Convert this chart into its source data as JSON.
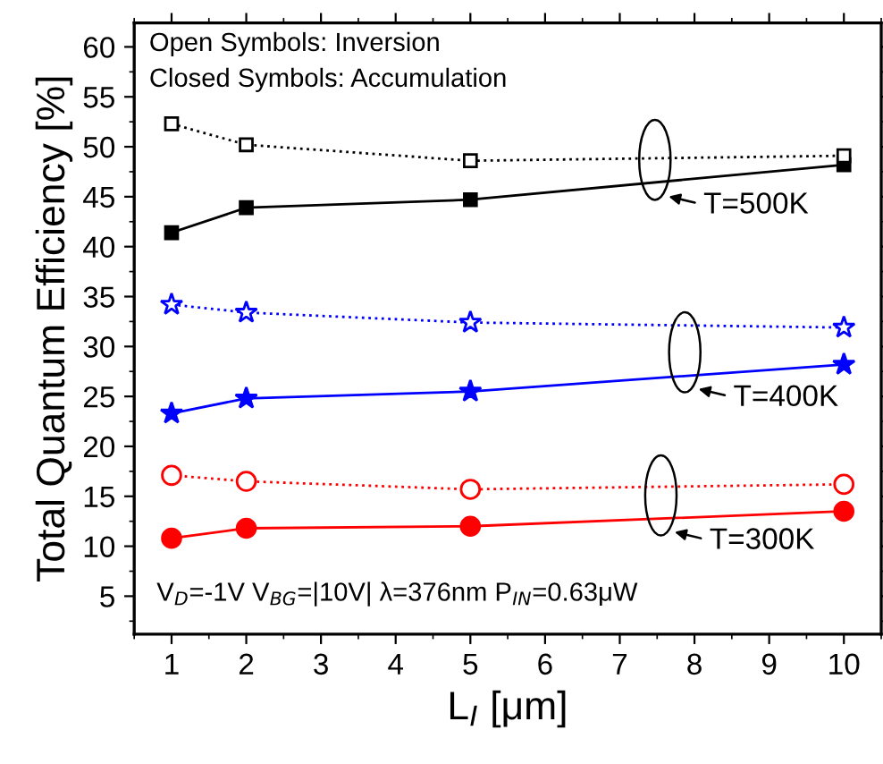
{
  "chart_data": {
    "type": "line",
    "xlabel": "L$_{I}$ [μm]",
    "ylabel": "Total Quantum Efficiency [%]",
    "x": [
      1,
      2,
      5,
      10
    ],
    "xlim": [
      0.5,
      10.5
    ],
    "xticks": [
      1,
      2,
      3,
      4,
      5,
      6,
      7,
      8,
      9,
      10
    ],
    "ylim": [
      1.2,
      62.4
    ],
    "yticks": [
      5,
      10,
      15,
      20,
      25,
      30,
      35,
      40,
      45,
      50,
      55,
      60
    ],
    "grid": false,
    "legend": false,
    "series": [
      {
        "color": "#000000",
        "marker": "square",
        "line_style": "dotted",
        "values": [
          52.3,
          50.2,
          48.6,
          49.1
        ]
      },
      {
        "color": "#000000",
        "marker": "square",
        "line_style": "solid",
        "values": [
          41.4,
          43.9,
          44.7,
          48.2
        ]
      },
      {
        "color": "#0000ff",
        "marker": "star",
        "line_style": "dotted",
        "values": [
          34.2,
          33.4,
          32.4,
          31.9
        ]
      },
      {
        "color": "#0000ff",
        "marker": "star",
        "line_style": "solid",
        "values": [
          23.3,
          24.8,
          25.5,
          28.2
        ]
      },
      {
        "color": "#ff0000",
        "marker": "circle",
        "line_style": "dotted",
        "values": [
          17.1,
          16.5,
          15.7,
          16.2
        ]
      },
      {
        "color": "#ff0000",
        "marker": "circle",
        "line_style": "solid",
        "values": [
          10.8,
          11.8,
          12.0,
          13.5
        ]
      }
    ],
    "annotations": [
      "Open Symbols: Inversion\nClosed Symbols: Accumulation",
      "V$_{D}$=-1V V$_{BG}$=|10V| λ=376nm P$_{IN}$=0.63μW",
      "T=500K",
      "T=400K",
      "T=300K"
    ]
  }
}
